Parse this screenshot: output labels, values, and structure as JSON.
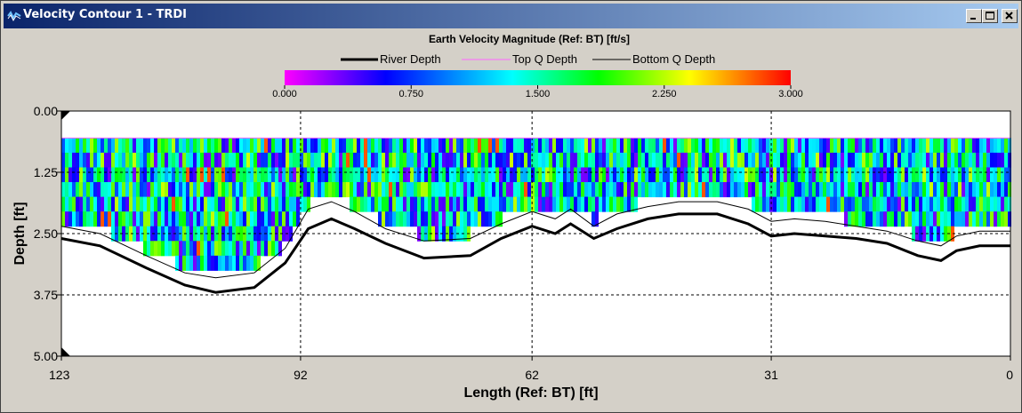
{
  "window": {
    "title": "Velocity Contour 1 - TRDI",
    "minimize_label": "minimize",
    "maximize_label": "maximize",
    "close_label": "close"
  },
  "chart_data": {
    "type": "heatmap",
    "title": "Earth Velocity Magnitude (Ref: BT) [ft/s]",
    "xlabel": "Length (Ref: BT) [ft]",
    "ylabel": "Depth [ft]",
    "x_ticks": [
      "123",
      "92",
      "62",
      "31",
      "0"
    ],
    "y_ticks": [
      "0.00",
      "1.25",
      "2.50",
      "3.75",
      "5.00"
    ],
    "xlim": [
      123,
      0
    ],
    "ylim": [
      0,
      5.0
    ],
    "grid": "dashed",
    "colorbar": {
      "ticks": [
        "0.000",
        "0.750",
        "1.500",
        "2.250",
        "3.000"
      ],
      "range": [
        0,
        3.0
      ],
      "colors": [
        "#ff00ff",
        "#0000ff",
        "#00ffff",
        "#00ff00",
        "#ffff00",
        "#ff0000"
      ]
    },
    "legend": [
      "River Depth",
      "Top Q Depth",
      "Bottom Q Depth"
    ],
    "legend_placement": "top-center",
    "river_depth": [
      [
        123,
        2.6
      ],
      [
        118,
        2.75
      ],
      [
        112,
        3.2
      ],
      [
        107,
        3.55
      ],
      [
        103,
        3.7
      ],
      [
        98,
        3.6
      ],
      [
        94,
        3.1
      ],
      [
        91,
        2.4
      ],
      [
        88,
        2.2
      ],
      [
        85,
        2.4
      ],
      [
        81,
        2.7
      ],
      [
        76,
        3.0
      ],
      [
        70,
        2.95
      ],
      [
        66,
        2.6
      ],
      [
        62,
        2.35
      ],
      [
        59,
        2.5
      ],
      [
        57,
        2.3
      ],
      [
        54,
        2.6
      ],
      [
        51,
        2.4
      ],
      [
        47,
        2.2
      ],
      [
        43,
        2.1
      ],
      [
        38,
        2.1
      ],
      [
        34,
        2.3
      ],
      [
        31,
        2.55
      ],
      [
        28,
        2.5
      ],
      [
        24,
        2.55
      ],
      [
        20,
        2.6
      ],
      [
        16,
        2.7
      ],
      [
        12,
        2.95
      ],
      [
        9,
        3.05
      ],
      [
        7,
        2.85
      ],
      [
        4,
        2.75
      ],
      [
        0,
        2.75
      ]
    ],
    "bottom_q_depth": [
      [
        123,
        2.35
      ],
      [
        118,
        2.5
      ],
      [
        112,
        2.95
      ],
      [
        107,
        3.3
      ],
      [
        103,
        3.4
      ],
      [
        98,
        3.3
      ],
      [
        94,
        2.8
      ],
      [
        91,
        2.0
      ],
      [
        88,
        1.85
      ],
      [
        85,
        2.05
      ],
      [
        81,
        2.4
      ],
      [
        76,
        2.65
      ],
      [
        70,
        2.6
      ],
      [
        66,
        2.3
      ],
      [
        62,
        2.05
      ],
      [
        59,
        2.2
      ],
      [
        57,
        2.0
      ],
      [
        54,
        2.35
      ],
      [
        51,
        2.1
      ],
      [
        47,
        1.95
      ],
      [
        43,
        1.85
      ],
      [
        38,
        1.85
      ],
      [
        34,
        2.0
      ],
      [
        31,
        2.25
      ],
      [
        28,
        2.2
      ],
      [
        24,
        2.25
      ],
      [
        20,
        2.35
      ],
      [
        16,
        2.45
      ],
      [
        12,
        2.65
      ],
      [
        9,
        2.75
      ],
      [
        7,
        2.55
      ],
      [
        4,
        2.45
      ],
      [
        0,
        2.45
      ]
    ],
    "top_q_depth": 0.55
  }
}
